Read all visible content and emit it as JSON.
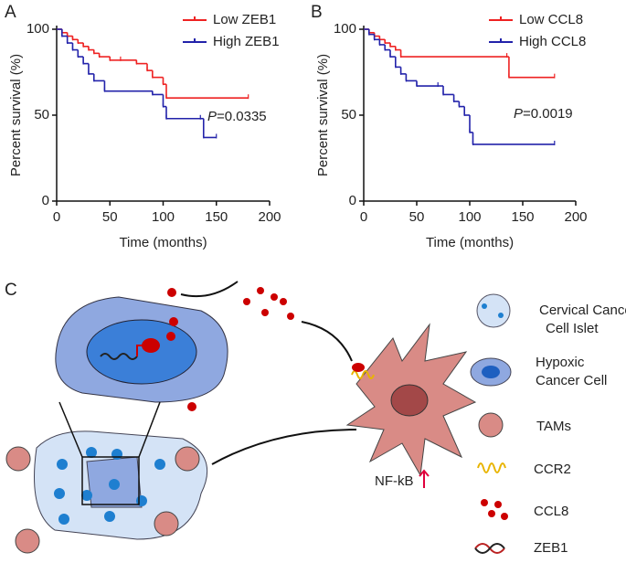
{
  "chart_data": [
    {
      "type": "line",
      "step": true,
      "panel": "A",
      "x_label": "Time (months)",
      "y_label": "Percent survival (%)",
      "annotation": {
        "italic": "P",
        "text": "=0.0335"
      },
      "xlim": [
        0,
        200
      ],
      "xticks": [
        0,
        50,
        100,
        150,
        200
      ],
      "ylim": [
        0,
        100
      ],
      "yticks": [
        0,
        50,
        100
      ],
      "legend": "upper right",
      "series": [
        {
          "name": "Low  ZEB1",
          "color": "#ee2222",
          "x": [
            0,
            5,
            10,
            15,
            20,
            25,
            30,
            35,
            40,
            50,
            60,
            75,
            85,
            90,
            100,
            103,
            180
          ],
          "values": [
            100,
            98,
            96,
            94,
            92,
            90,
            88,
            86,
            84,
            82,
            82,
            80,
            76,
            72,
            68,
            60,
            60
          ]
        },
        {
          "name": "High ZEB1",
          "color": "#2222aa",
          "x": [
            0,
            5,
            10,
            15,
            20,
            25,
            30,
            35,
            45,
            90,
            100,
            103,
            135,
            138,
            150
          ],
          "values": [
            100,
            96,
            92,
            88,
            84,
            80,
            74,
            70,
            64,
            62,
            55,
            48,
            48,
            37,
            37
          ]
        }
      ]
    },
    {
      "type": "line",
      "step": true,
      "panel": "B",
      "x_label": "Time (months)",
      "y_label": "Percent survival (%)",
      "annotation": {
        "italic": "P",
        "text": "=0.0019"
      },
      "xlim": [
        0,
        200
      ],
      "xticks": [
        0,
        50,
        100,
        150,
        200
      ],
      "ylim": [
        0,
        100
      ],
      "yticks": [
        0,
        50,
        100
      ],
      "legend": "upper right",
      "series": [
        {
          "name": "Low CCL8",
          "color": "#ee2222",
          "x": [
            0,
            5,
            10,
            15,
            20,
            25,
            30,
            35,
            135,
            137,
            180
          ],
          "values": [
            100,
            98,
            96,
            94,
            92,
            90,
            88,
            84,
            84,
            72,
            72
          ]
        },
        {
          "name": "High CCL8",
          "color": "#2222aa",
          "x": [
            0,
            5,
            10,
            15,
            20,
            25,
            30,
            35,
            40,
            50,
            70,
            75,
            85,
            90,
            95,
            100,
            103,
            180
          ],
          "values": [
            100,
            97,
            94,
            91,
            88,
            84,
            78,
            74,
            70,
            67,
            67,
            62,
            58,
            55,
            50,
            40,
            33,
            33
          ]
        }
      ]
    }
  ],
  "diagram": {
    "panel": "C",
    "signal": "NF-kB",
    "legend": [
      [
        "Cervical Cancer",
        "Cell Islet"
      ],
      [
        "Hypoxic",
        "Cancer Cell"
      ],
      [
        "TAMs"
      ],
      [
        "CCR2"
      ],
      [
        "CCL8"
      ],
      [
        "ZEB1"
      ]
    ]
  }
}
